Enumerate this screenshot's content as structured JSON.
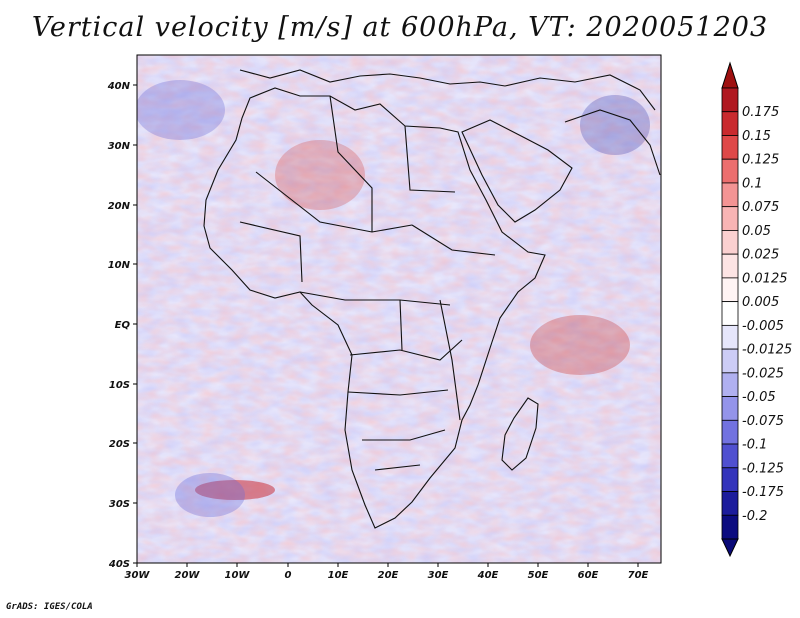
{
  "title": "Vertical velocity [m/s] at 600hPa, VT: 2020051203",
  "credit": "GrADS: IGES/COLA",
  "map": {
    "region": "Africa",
    "lon_labels": [
      "30W",
      "20W",
      "10W",
      "0",
      "10E",
      "20E",
      "30E",
      "40E",
      "50E",
      "60E",
      "70E"
    ],
    "lat_labels": [
      "40N",
      "30N",
      "20N",
      "10N",
      "EQ",
      "10S",
      "20S",
      "30S",
      "40S"
    ]
  },
  "colorbar": {
    "labels": [
      "0.175",
      "0.15",
      "0.125",
      "0.1",
      "0.075",
      "0.05",
      "0.025",
      "0.0125",
      "0.005",
      "-0.005",
      "-0.0125",
      "-0.025",
      "-0.05",
      "-0.075",
      "-0.1",
      "-0.125",
      "-0.175",
      "-0.2"
    ],
    "colors": [
      "#b01820",
      "#c92a2e",
      "#df4848",
      "#ec6e6e",
      "#f39494",
      "#f8b4b4",
      "#fbd0d0",
      "#fde4e4",
      "#fff4f4",
      "#ffffff",
      "#e6e6fb",
      "#ccccf6",
      "#b0b0f0",
      "#9494ea",
      "#7272e0",
      "#5050d0",
      "#3434bb",
      "#1c1c9c",
      "#0c0c80"
    ],
    "top_arrow_color": "#9e1010",
    "bottom_arrow_color": "#0a0a78"
  }
}
